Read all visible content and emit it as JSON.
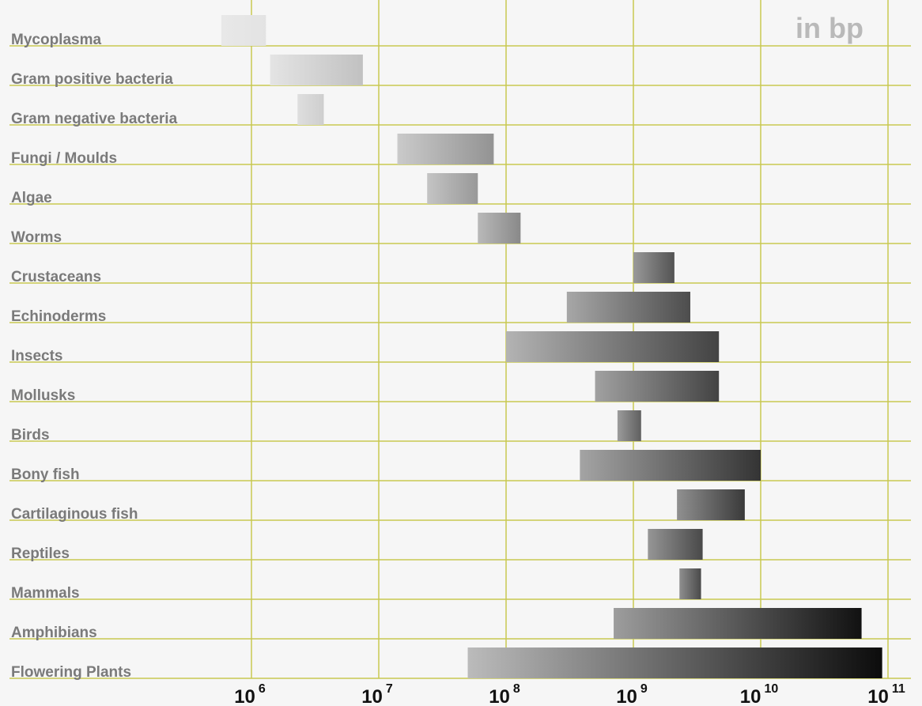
{
  "chart_data": {
    "type": "bar",
    "orientation": "horizontal-range",
    "x_scale": "log10",
    "unit_label": "in bp",
    "xlim": [
      1000000.0,
      100000000000.0
    ],
    "ticks": [
      {
        "base": "10",
        "exp": "6",
        "value": 1000000.0
      },
      {
        "base": "10",
        "exp": "7",
        "value": 10000000.0
      },
      {
        "base": "10",
        "exp": "8",
        "value": 100000000.0
      },
      {
        "base": "10",
        "exp": "9",
        "value": 1000000000.0
      },
      {
        "base": "10",
        "exp": "10",
        "value": 10000000000.0
      },
      {
        "base": "10",
        "exp": "11",
        "value": 100000000000.0
      }
    ],
    "grid": true,
    "categories": [
      {
        "label": "Mycoplasma",
        "min": 580000,
        "max": 1300000
      },
      {
        "label": "Gram positive bacteria",
        "min": 1400000,
        "max": 7500000
      },
      {
        "label": "Gram negative bacteria",
        "min": 2300000,
        "max": 3700000
      },
      {
        "label": "Fungi / Moulds",
        "min": 14000000,
        "max": 80000000
      },
      {
        "label": "Algae",
        "min": 24000000,
        "max": 60000000
      },
      {
        "label": "Worms",
        "min": 60000000,
        "max": 130000000
      },
      {
        "label": "Crustaceans",
        "min": 1000000000,
        "max": 2100000000
      },
      {
        "label": "Echinoderms",
        "min": 300000000,
        "max": 2800000000
      },
      {
        "label": "Insects",
        "min": 100000000,
        "max": 4700000000
      },
      {
        "label": "Mollusks",
        "min": 500000000,
        "max": 4700000000
      },
      {
        "label": "Birds",
        "min": 750000000,
        "max": 1150000000
      },
      {
        "label": "Bony fish",
        "min": 380000000,
        "max": 10000000000
      },
      {
        "label": "Cartilaginous fish",
        "min": 2200000000,
        "max": 7500000000
      },
      {
        "label": "Reptiles",
        "min": 1300000000,
        "max": 3500000000
      },
      {
        "label": "Mammals",
        "min": 2300000000,
        "max": 3400000000
      },
      {
        "label": "Amphibians",
        "min": 700000000,
        "max": 62000000000
      },
      {
        "label": "Flowering Plants",
        "min": 50000000,
        "max": 90000000000
      }
    ],
    "colors": {
      "grid": "#c8c850",
      "bar_light": "#ececec",
      "bar_dark": "#080808",
      "label": "#7a7a7a",
      "unit": "#b9b9b9",
      "background": "#f6f6f6"
    }
  }
}
